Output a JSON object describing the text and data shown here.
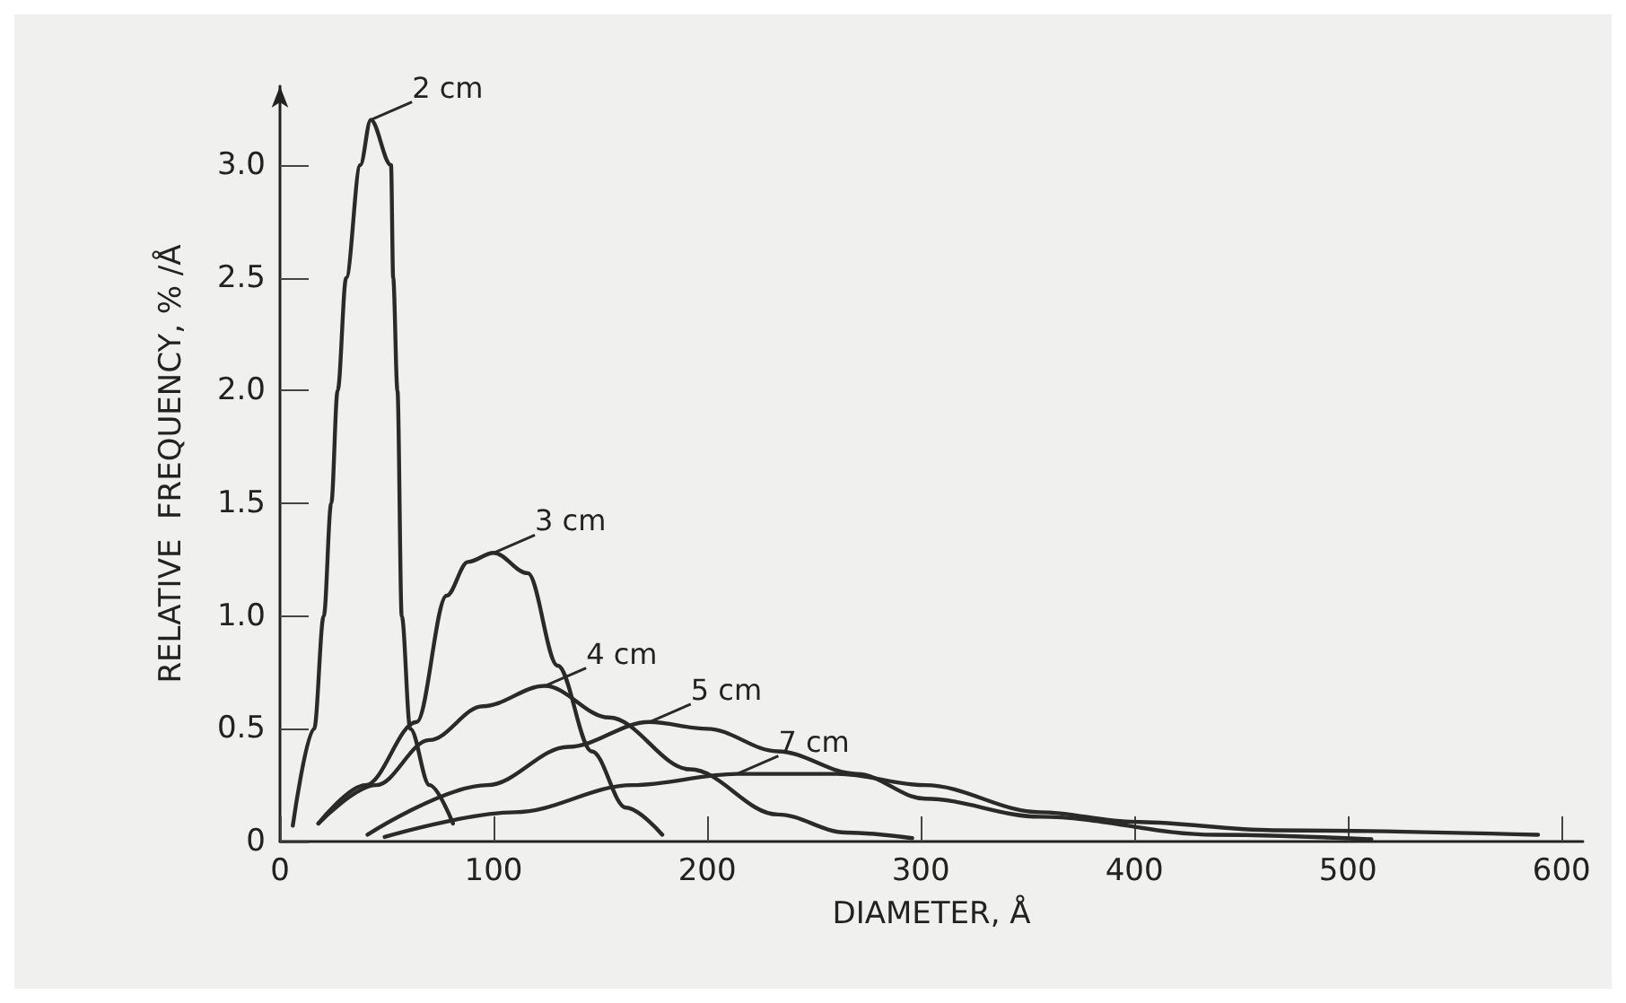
{
  "chart_data": {
    "type": "line",
    "xlabel": "DIAMETER, Å",
    "ylabel": "RELATIVE  FREQUENCY, % /Å",
    "xlim": [
      0,
      610
    ],
    "xticks": [
      0,
      100,
      200,
      300,
      400,
      500,
      600
    ],
    "ylim": [
      0,
      3.35
    ],
    "yticks": [
      0,
      0.5,
      {
        "value": 1,
        "label": "1.0"
      },
      1.5,
      {
        "value": 2,
        "label": "2.0"
      },
      2.5,
      {
        "value": 3,
        "label": "3.0"
      }
    ],
    "grid": false,
    "legend": false,
    "marker": "none",
    "line_style": "solid",
    "series": [
      {
        "name": "2 cm",
        "color": "#2a2a2a",
        "x": [
          6,
          16,
          20.5,
          24,
          27,
          31,
          37.6,
          42.5,
          52,
          53,
          55,
          57,
          61,
          70,
          81
        ],
        "values": [
          0.07,
          0.5,
          1.0,
          1.5,
          2.0,
          2.5,
          3.0,
          3.2,
          3.0,
          2.5,
          2.0,
          1.0,
          0.5,
          0.25,
          0.08
        ]
      },
      {
        "name": "3 cm",
        "color": "#2a2a2a",
        "x": [
          18,
          40,
          64,
          78,
          88,
          100,
          116,
          130,
          146,
          162,
          179
        ],
        "values": [
          0.08,
          0.25,
          0.53,
          1.09,
          1.24,
          1.28,
          1.19,
          0.78,
          0.4,
          0.15,
          0.03
        ]
      },
      {
        "name": "4 cm",
        "color": "#2a2a2a",
        "x": [
          18,
          45,
          70,
          95,
          124,
          154,
          192,
          233,
          265,
          296
        ],
        "values": [
          0.08,
          0.25,
          0.45,
          0.6,
          0.69,
          0.55,
          0.32,
          0.12,
          0.04,
          0.015
        ]
      },
      {
        "name": "5 cm",
        "color": "#2a2a2a",
        "x": [
          41,
          97,
          135,
          173,
          200,
          233,
          270,
          302,
          356,
          438,
          511
        ],
        "values": [
          0.03,
          0.25,
          0.42,
          0.53,
          0.5,
          0.4,
          0.3,
          0.19,
          0.11,
          0.03,
          0.01
        ]
      },
      {
        "name": "7 cm",
        "color": "#2a2a2a",
        "x": [
          49,
          110,
          165,
          214,
          261,
          302,
          356,
          400,
          465,
          589
        ],
        "values": [
          0.02,
          0.13,
          0.25,
          0.3,
          0.3,
          0.25,
          0.13,
          0.087,
          0.05,
          0.03
        ]
      }
    ]
  }
}
